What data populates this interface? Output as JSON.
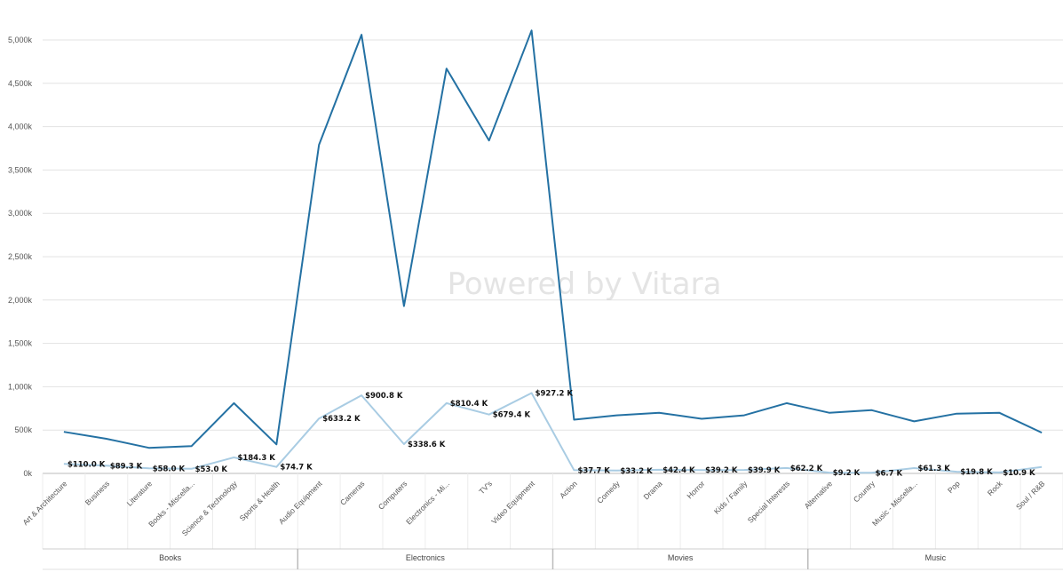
{
  "watermark": "Powered by Vitara",
  "chart_data": {
    "type": "line",
    "categories": [
      "Art & Architecture",
      "Business",
      "Literature",
      "Books - Miscella...",
      "Science & Technology",
      "Sports & Health",
      "Audio Equipment",
      "Cameras",
      "Computers",
      "Electronics - Mi...",
      "TV's",
      "Video Equipment",
      "Action",
      "Comedy",
      "Drama",
      "Horror",
      "Kids / Family",
      "Special Interests",
      "Alternative",
      "Country",
      "Music - Miscella...",
      "Pop",
      "Rock",
      "Soul / R&B"
    ],
    "groups": [
      {
        "name": "Books",
        "count": 6
      },
      {
        "name": "Electronics",
        "count": 6
      },
      {
        "name": "Movies",
        "count": 6
      },
      {
        "name": "Music",
        "count": 6
      }
    ],
    "series": [
      {
        "color": "#2471a3",
        "values": [
          480,
          400,
          295,
          315,
          810,
          335,
          3790,
          5060,
          1930,
          4670,
          3840,
          5110,
          620,
          670,
          700,
          630,
          670,
          810,
          700,
          730,
          600,
          690,
          700,
          470
        ]
      },
      {
        "color": "#a9cce3",
        "values": [
          110.0,
          89.3,
          58.0,
          53.0,
          184.3,
          74.7,
          633.2,
          900.8,
          338.6,
          810.4,
          679.4,
          927.2,
          37.7,
          33.2,
          42.4,
          39.2,
          39.9,
          62.2,
          9.2,
          6.7,
          61.3,
          19.8,
          10.9,
          75
        ],
        "labels": [
          "$110.0 K",
          "$89.3 K",
          "$58.0 K",
          "$53.0 K",
          "$184.3 K",
          "$74.7 K",
          "$633.2 K",
          "$900.8 K",
          "$338.6 K",
          "$810.4 K",
          "$679.4 K",
          "$927.2 K",
          "$37.7 K",
          "$33.2 K",
          "$42.4 K",
          "$39.2 K",
          "$39.9 K",
          "$62.2 K",
          "$9.2 K",
          "$6.7 K",
          "$61.3 K",
          "$19.8 K",
          "$10.9 K",
          ""
        ]
      }
    ],
    "yticks": [
      0,
      500,
      1000,
      1500,
      2000,
      2500,
      3000,
      3500,
      4000,
      4500,
      5000
    ],
    "ytick_labels": [
      "0k",
      "500k",
      "1,000k",
      "1,500k",
      "2,000k",
      "2,500k",
      "3,000k",
      "3,500k",
      "4,000k",
      "4,500k",
      "5,000k"
    ],
    "ylim": [
      0,
      5000
    ],
    "grid": true,
    "legend": "none"
  }
}
